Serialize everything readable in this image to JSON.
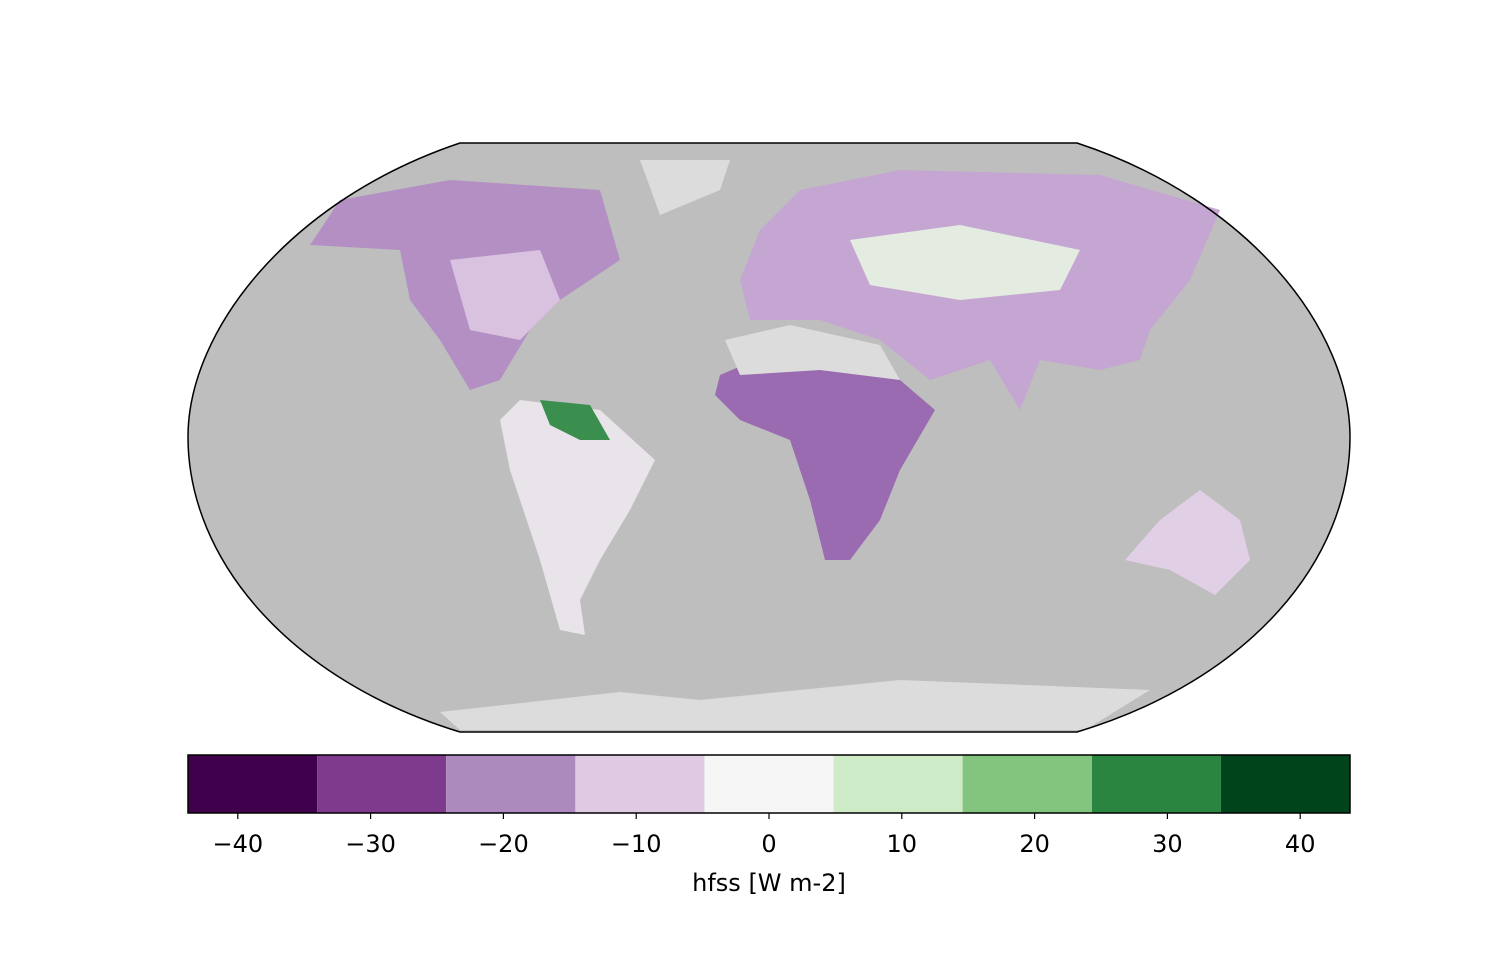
{
  "chart_data": {
    "type": "map",
    "colorbar_label": "hfss [W m-2]",
    "levels": [
      -43.75,
      -34.03,
      -24.31,
      -14.58,
      -4.86,
      4.86,
      14.58,
      24.31,
      34.03,
      43.75
    ],
    "colors": [
      "#40004b",
      "#7e3a8c",
      "#ad8abe",
      "#dfc9e3",
      "#f6f6f6",
      "#cdebc6",
      "#83c57f",
      "#2a8541",
      "#00441b"
    ],
    "xlim": [
      -43.75,
      43.75
    ],
    "xticks": [
      {
        "value": -40,
        "label": "−40"
      },
      {
        "value": -30,
        "label": "−30"
      },
      {
        "value": -20,
        "label": "−20"
      },
      {
        "value": -10,
        "label": "−10"
      },
      0,
      10,
      20,
      30,
      40
    ]
  }
}
